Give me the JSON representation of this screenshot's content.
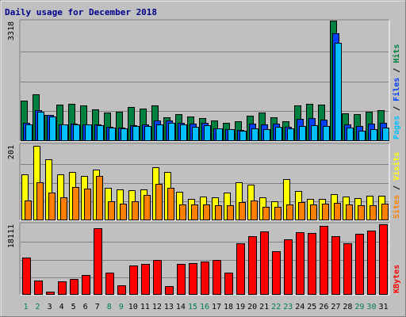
{
  "chart_data": {
    "type": "bar",
    "title": "Daily usage for December 2018",
    "categories": [
      "1",
      "2",
      "3",
      "4",
      "5",
      "6",
      "7",
      "8",
      "9",
      "10",
      "11",
      "12",
      "13",
      "14",
      "15",
      "16",
      "17",
      "18",
      "19",
      "20",
      "21",
      "22",
      "23",
      "24",
      "25",
      "26",
      "27",
      "28",
      "29",
      "30",
      "31"
    ],
    "weekend_days": [
      "1",
      "2",
      "8",
      "9",
      "15",
      "16",
      "22",
      "23",
      "29",
      "30"
    ],
    "panels": [
      {
        "name": "top",
        "ymax_label": "3318",
        "ymax": 3318,
        "legend": [
          {
            "text": "Pages",
            "color": "#00c0ff"
          },
          {
            "text": " / ",
            "color": "#000000"
          },
          {
            "text": "Files",
            "color": "#0040ff"
          },
          {
            "text": " / ",
            "color": "#000000"
          },
          {
            "text": "Hits",
            "color": "#008040"
          }
        ],
        "series": [
          {
            "name": "Hits",
            "color": "#008040",
            "values": [
              1100,
              1280,
              700,
              980,
              1000,
              960,
              850,
              780,
              800,
              920,
              880,
              960,
              640,
              720,
              650,
              620,
              540,
              480,
              520,
              680,
              760,
              640,
              520,
              960,
              1020,
              980,
              3310,
              740,
              730,
              800,
              840
            ]
          },
          {
            "name": "Files",
            "color": "#0040ff",
            "values": [
              480,
              840,
              700,
              450,
              460,
              450,
              440,
              380,
              360,
              420,
              440,
              540,
              540,
              480,
              460,
              480,
              330,
              310,
              290,
              460,
              440,
              460,
              370,
              600,
              620,
              580,
              2970,
              440,
              400,
              460,
              480
            ]
          },
          {
            "name": "Pages",
            "color": "#00c0ff",
            "values": [
              440,
              800,
              660,
              430,
              430,
              440,
              420,
              360,
              340,
              400,
              400,
              440,
              480,
              430,
              380,
              420,
              330,
              300,
              260,
              330,
              300,
              380,
              320,
              400,
              420,
              400,
              2700,
              350,
              270,
              310,
              350
            ]
          }
        ]
      },
      {
        "name": "middle",
        "ymax_label": "201",
        "ymax": 201,
        "legend": [
          {
            "text": "Sites",
            "color": "#ff8000"
          },
          {
            "text": " / ",
            "color": "#000000"
          },
          {
            "text": "Visits",
            "color": "#ffff00"
          }
        ],
        "series": [
          {
            "name": "Visits",
            "color": "#ffff00",
            "values": [
              120,
              196,
              160,
              120,
              128,
              116,
              134,
              84,
              80,
              78,
              80,
              140,
              128,
              74,
              56,
              62,
              60,
              72,
              100,
              94,
              60,
              48,
              108,
              76,
              56,
              55,
              68,
              62,
              58,
              64,
              64
            ]
          },
          {
            "name": "Sites",
            "color": "#ff8000",
            "values": [
              50,
              100,
              72,
              60,
              86,
              82,
              116,
              48,
              42,
              48,
              66,
              96,
              84,
              40,
              40,
              40,
              38,
              38,
              46,
              50,
              34,
              34,
              40,
              46,
              40,
              42,
              44,
              40,
              38,
              38,
              42
            ]
          }
        ]
      },
      {
        "name": "bottom",
        "ymax_label": "18111",
        "ymax": 18111,
        "legend": [
          {
            "text": "KBytes",
            "color": "#ff0000"
          }
        ],
        "series": [
          {
            "name": "KBytes",
            "color": "#ff0000",
            "values": [
              9300,
              3500,
              700,
              3200,
              3800,
              4800,
              16800,
              5500,
              2200,
              7400,
              7700,
              8800,
              2000,
              7800,
              8000,
              8400,
              8700,
              5400,
              13000,
              14800,
              16000,
              11000,
              14000,
              15800,
              15700,
              17400,
              14900,
              13000,
              15500,
              16300,
              17900
            ]
          }
        ]
      }
    ]
  }
}
